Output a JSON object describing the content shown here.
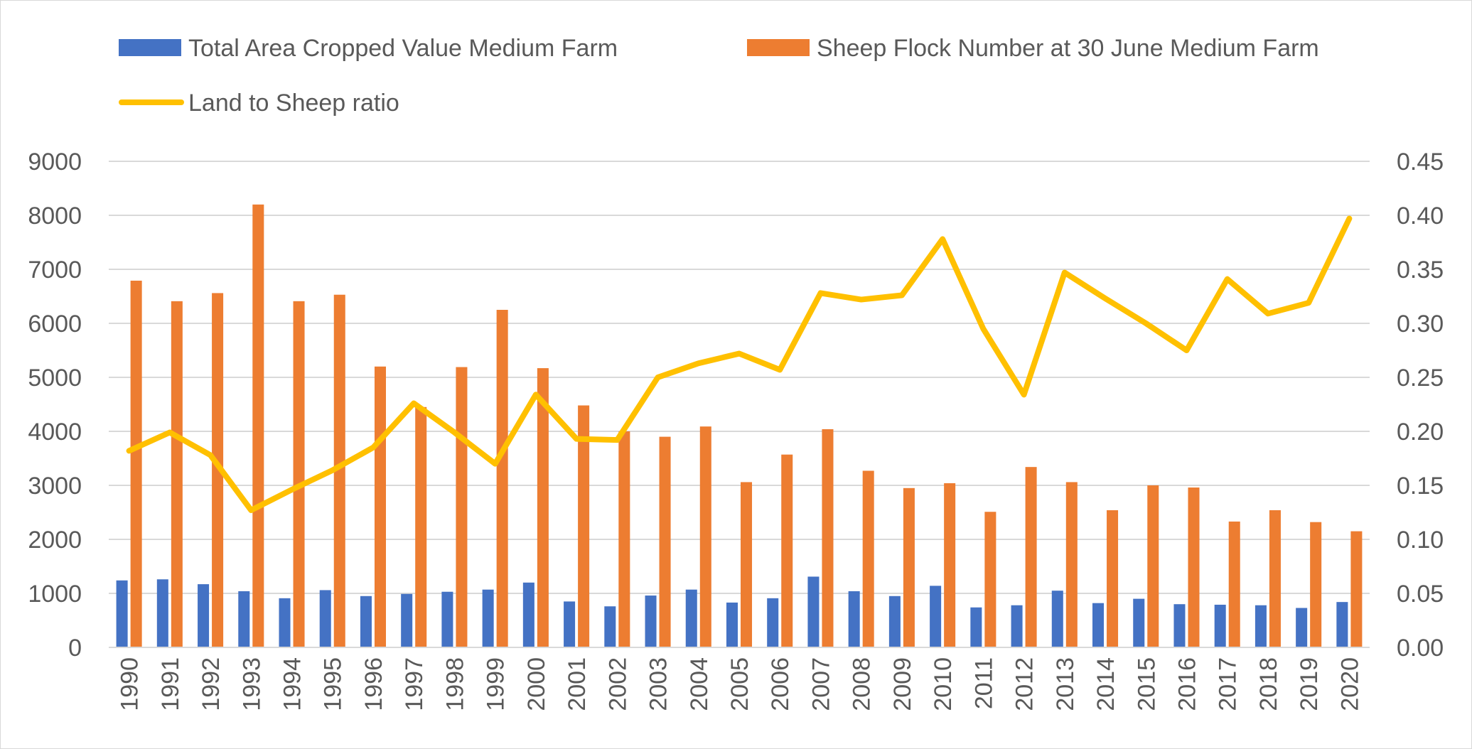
{
  "chart_data": {
    "type": "bar",
    "categories": [
      "1990",
      "1991",
      "1992",
      "1993",
      "1994",
      "1995",
      "1996",
      "1997",
      "1998",
      "1999",
      "2000",
      "2001",
      "2002",
      "2003",
      "2004",
      "2005",
      "2006",
      "2007",
      "2008",
      "2009",
      "2010",
      "2011",
      "2012",
      "2013",
      "2014",
      "2015",
      "2016",
      "2017",
      "2018",
      "2019",
      "2020"
    ],
    "series": [
      {
        "name": "Total Area Cropped Value Medium Farm",
        "type": "bar",
        "axis": "left",
        "color": "#4472c4",
        "values": [
          1240,
          1260,
          1170,
          1040,
          910,
          1060,
          950,
          990,
          1030,
          1070,
          1200,
          850,
          760,
          960,
          1070,
          830,
          910,
          1310,
          1040,
          950,
          1140,
          740,
          780,
          1050,
          820,
          900,
          800,
          790,
          780,
          730,
          840
        ]
      },
      {
        "name": "Sheep Flock Number at 30 June Medium Farm",
        "type": "bar",
        "axis": "left",
        "color": "#ed7d31",
        "values": [
          6790,
          6410,
          6560,
          8200,
          6410,
          6530,
          5200,
          4450,
          5190,
          6250,
          5170,
          4480,
          4000,
          3900,
          4090,
          3060,
          3570,
          4040,
          3270,
          2950,
          3040,
          2510,
          3340,
          3060,
          2540,
          3000,
          2960,
          2330,
          2540,
          2320,
          2150
        ]
      },
      {
        "name": "Land to Sheep ratio",
        "type": "line",
        "axis": "right",
        "color": "#ffc000",
        "values": [
          0.182,
          0.199,
          0.178,
          0.127,
          0.146,
          0.164,
          0.185,
          0.226,
          0.199,
          0.17,
          0.234,
          0.193,
          0.192,
          0.25,
          0.263,
          0.272,
          0.257,
          0.328,
          0.322,
          0.326,
          0.378,
          0.295,
          0.234,
          0.347,
          0.323,
          0.3,
          0.275,
          0.341,
          0.309,
          0.319,
          0.397
        ]
      }
    ],
    "y_left": {
      "min": 0,
      "max": 9000,
      "ticks": [
        0,
        1000,
        2000,
        3000,
        4000,
        5000,
        6000,
        7000,
        8000,
        9000
      ]
    },
    "y_right": {
      "min": 0,
      "max": 0.45,
      "ticks": [
        "0.00",
        "0.05",
        "0.10",
        "0.15",
        "0.20",
        "0.25",
        "0.30",
        "0.35",
        "0.40",
        "0.45"
      ]
    },
    "grid": true,
    "legend_position": "top",
    "title": "",
    "xlabel": "",
    "ylabel": ""
  }
}
